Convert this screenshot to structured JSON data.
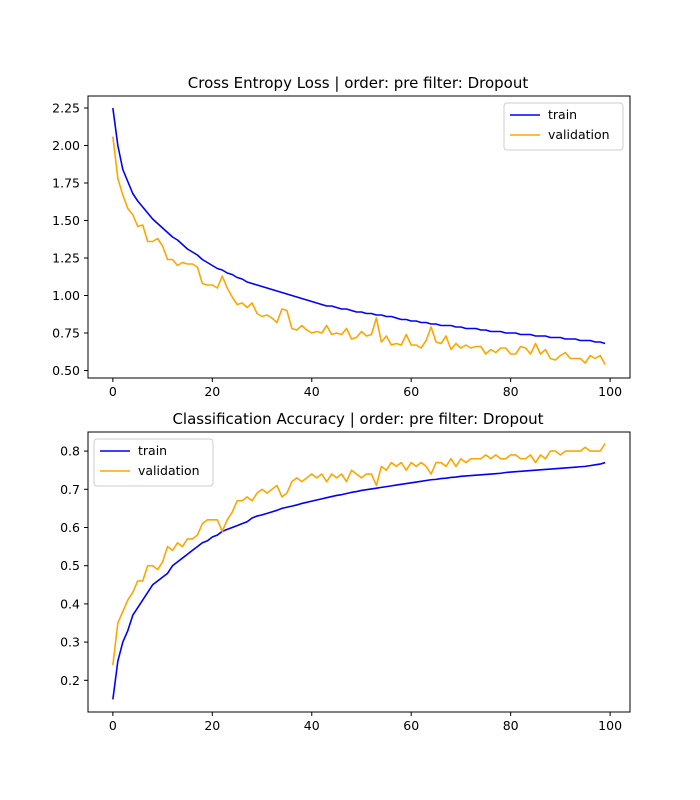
{
  "chart_data": [
    {
      "type": "line",
      "title": "Cross Entropy Loss | order: pre filter: Dropout",
      "xlabel": "",
      "ylabel": "",
      "xlim": [
        -5,
        104
      ],
      "ylim": [
        0.45,
        2.33
      ],
      "xticks": [
        0,
        20,
        40,
        60,
        80,
        100
      ],
      "yticks": [
        0.5,
        0.75,
        1.0,
        1.25,
        1.5,
        1.75,
        2.0,
        2.25
      ],
      "ytick_labels": [
        "0.50",
        "0.75",
        "1.00",
        "1.25",
        "1.50",
        "1.75",
        "2.00",
        "2.25"
      ],
      "legend": "top-right",
      "grid": false,
      "series": [
        {
          "name": "train",
          "color": "#0000ff",
          "x_start": 0,
          "values": [
            2.25,
            2.0,
            1.84,
            1.76,
            1.68,
            1.63,
            1.59,
            1.55,
            1.51,
            1.48,
            1.45,
            1.42,
            1.39,
            1.37,
            1.34,
            1.31,
            1.29,
            1.27,
            1.24,
            1.22,
            1.2,
            1.18,
            1.17,
            1.15,
            1.14,
            1.12,
            1.11,
            1.09,
            1.08,
            1.07,
            1.06,
            1.05,
            1.04,
            1.03,
            1.02,
            1.01,
            1.0,
            0.99,
            0.98,
            0.97,
            0.96,
            0.95,
            0.94,
            0.93,
            0.93,
            0.92,
            0.91,
            0.91,
            0.9,
            0.89,
            0.89,
            0.88,
            0.88,
            0.87,
            0.87,
            0.86,
            0.86,
            0.85,
            0.84,
            0.84,
            0.83,
            0.83,
            0.82,
            0.82,
            0.81,
            0.81,
            0.8,
            0.8,
            0.8,
            0.79,
            0.79,
            0.78,
            0.78,
            0.78,
            0.77,
            0.77,
            0.76,
            0.76,
            0.76,
            0.75,
            0.75,
            0.75,
            0.74,
            0.74,
            0.74,
            0.73,
            0.73,
            0.73,
            0.72,
            0.72,
            0.72,
            0.71,
            0.71,
            0.71,
            0.7,
            0.7,
            0.7,
            0.69,
            0.69,
            0.68
          ]
        },
        {
          "name": "validation",
          "color": "#ffa500",
          "x_start": 0,
          "values": [
            2.06,
            1.78,
            1.67,
            1.58,
            1.54,
            1.46,
            1.47,
            1.36,
            1.36,
            1.38,
            1.33,
            1.24,
            1.24,
            1.2,
            1.22,
            1.21,
            1.21,
            1.19,
            1.08,
            1.07,
            1.07,
            1.05,
            1.13,
            1.05,
            0.99,
            0.94,
            0.95,
            0.92,
            0.95,
            0.88,
            0.86,
            0.87,
            0.85,
            0.82,
            0.91,
            0.9,
            0.78,
            0.77,
            0.8,
            0.77,
            0.75,
            0.76,
            0.75,
            0.8,
            0.74,
            0.75,
            0.74,
            0.78,
            0.71,
            0.72,
            0.76,
            0.73,
            0.74,
            0.85,
            0.69,
            0.73,
            0.67,
            0.68,
            0.67,
            0.74,
            0.67,
            0.67,
            0.65,
            0.7,
            0.79,
            0.69,
            0.68,
            0.73,
            0.64,
            0.68,
            0.65,
            0.67,
            0.65,
            0.66,
            0.66,
            0.61,
            0.64,
            0.62,
            0.65,
            0.65,
            0.61,
            0.61,
            0.66,
            0.65,
            0.61,
            0.68,
            0.61,
            0.64,
            0.58,
            0.57,
            0.6,
            0.62,
            0.58,
            0.58,
            0.58,
            0.55,
            0.6,
            0.58,
            0.6,
            0.54
          ]
        }
      ]
    },
    {
      "type": "line",
      "title": "Classification Accuracy | order: pre filter: Dropout",
      "xlabel": "",
      "ylabel": "",
      "xlim": [
        -5,
        104
      ],
      "ylim": [
        0.117,
        0.85
      ],
      "xticks": [
        0,
        20,
        40,
        60,
        80,
        100
      ],
      "yticks": [
        0.2,
        0.3,
        0.4,
        0.5,
        0.6,
        0.7,
        0.8
      ],
      "ytick_labels": [
        "0.2",
        "0.3",
        "0.4",
        "0.5",
        "0.6",
        "0.7",
        "0.8"
      ],
      "legend": "top-left",
      "grid": false,
      "series": [
        {
          "name": "train",
          "color": "#0000ff",
          "x_start": 0,
          "values": [
            0.15,
            0.25,
            0.3,
            0.33,
            0.37,
            0.39,
            0.41,
            0.43,
            0.45,
            0.46,
            0.47,
            0.48,
            0.5,
            0.51,
            0.52,
            0.53,
            0.54,
            0.55,
            0.56,
            0.565,
            0.575,
            0.58,
            0.59,
            0.595,
            0.6,
            0.605,
            0.61,
            0.615,
            0.625,
            0.63,
            0.633,
            0.637,
            0.641,
            0.645,
            0.65,
            0.653,
            0.656,
            0.659,
            0.663,
            0.666,
            0.669,
            0.672,
            0.675,
            0.678,
            0.681,
            0.684,
            0.686,
            0.689,
            0.692,
            0.694,
            0.697,
            0.699,
            0.701,
            0.703,
            0.705,
            0.707,
            0.709,
            0.711,
            0.713,
            0.715,
            0.717,
            0.719,
            0.721,
            0.723,
            0.725,
            0.726,
            0.728,
            0.729,
            0.731,
            0.732,
            0.734,
            0.735,
            0.736,
            0.737,
            0.738,
            0.739,
            0.74,
            0.741,
            0.742,
            0.744,
            0.745,
            0.746,
            0.747,
            0.748,
            0.749,
            0.75,
            0.751,
            0.752,
            0.753,
            0.754,
            0.755,
            0.756,
            0.757,
            0.758,
            0.759,
            0.76,
            0.762,
            0.764,
            0.766,
            0.77
          ]
        },
        {
          "name": "validation",
          "color": "#ffa500",
          "x_start": 0,
          "values": [
            0.24,
            0.35,
            0.38,
            0.41,
            0.43,
            0.46,
            0.46,
            0.5,
            0.5,
            0.49,
            0.51,
            0.55,
            0.54,
            0.56,
            0.55,
            0.57,
            0.57,
            0.58,
            0.61,
            0.62,
            0.62,
            0.62,
            0.59,
            0.62,
            0.64,
            0.67,
            0.67,
            0.68,
            0.67,
            0.69,
            0.7,
            0.69,
            0.7,
            0.71,
            0.68,
            0.69,
            0.72,
            0.73,
            0.72,
            0.73,
            0.74,
            0.73,
            0.74,
            0.72,
            0.74,
            0.73,
            0.74,
            0.72,
            0.75,
            0.74,
            0.73,
            0.74,
            0.74,
            0.71,
            0.76,
            0.75,
            0.77,
            0.76,
            0.77,
            0.75,
            0.77,
            0.76,
            0.77,
            0.76,
            0.74,
            0.77,
            0.77,
            0.76,
            0.78,
            0.76,
            0.78,
            0.77,
            0.78,
            0.78,
            0.78,
            0.79,
            0.78,
            0.79,
            0.78,
            0.78,
            0.79,
            0.79,
            0.78,
            0.78,
            0.79,
            0.77,
            0.79,
            0.78,
            0.8,
            0.8,
            0.79,
            0.8,
            0.8,
            0.8,
            0.8,
            0.81,
            0.8,
            0.8,
            0.8,
            0.82
          ]
        }
      ]
    }
  ]
}
